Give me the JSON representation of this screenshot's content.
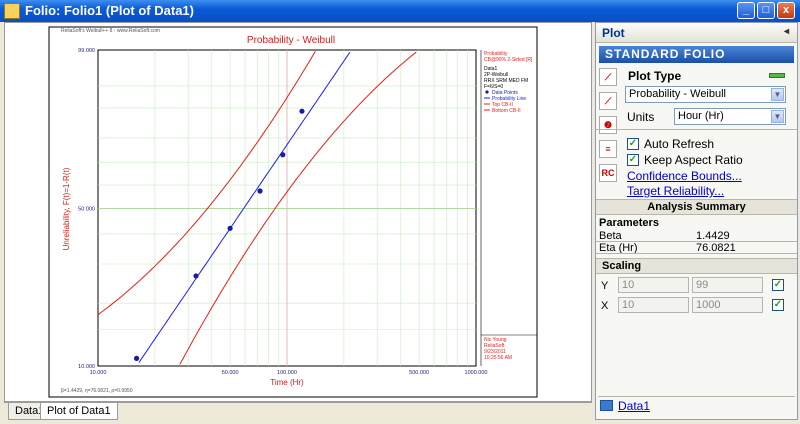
{
  "window": {
    "title": "Folio: Folio1 (Plot of Data1)",
    "buttons": [
      "_",
      "□",
      "x"
    ]
  },
  "chart_data": {
    "type": "scatter",
    "title": "Probability - Weibull",
    "xlabel": "Time (Hr)",
    "ylabel": "Unreliability, F(t)=1-R(t)",
    "x_scale": "log",
    "y_scale": "weibull",
    "xlim": [
      10,
      1000
    ],
    "ylim": [
      10,
      99
    ],
    "x_ticks": [
      "10.000",
      "50.000",
      "100.000",
      "500.000",
      "1000.000"
    ],
    "y_ticks": [
      "10.000",
      "50.000",
      "99.000"
    ],
    "header_text": "ReliaSoft's Weibull++ 8 - www.ReliaSoft.com",
    "footer_text": "β=1.4429, η=76.0821, ρ=0.9950",
    "legend_block1": [
      "Probability",
      "CB@90% 2-Sided [R]"
    ],
    "legend_block2": [
      "Data1",
      "2P-Weibull",
      "RRX SRM MED FM",
      "F=6/S=0"
    ],
    "legend_items": [
      {
        "name": "Data Points",
        "color": "#1a1aa8"
      },
      {
        "name": "Probability Line",
        "color": "#1a1aff"
      },
      {
        "name": "Top CB-II",
        "color": "#ee1c1c"
      },
      {
        "name": "Bottom CB-II",
        "color": "#ee1c1c"
      }
    ],
    "signature": [
      "Nic Young",
      "ReliaSoft",
      "9/23/2011",
      "10:25:56 AM"
    ],
    "points": [
      {
        "x": 16,
        "y": 10.9
      },
      {
        "x": 33,
        "y": 26.6
      },
      {
        "x": 50,
        "y": 42.1
      },
      {
        "x": 72,
        "y": 57.4
      },
      {
        "x": 95,
        "y": 73.2
      },
      {
        "x": 120,
        "y": 89.1
      }
    ],
    "colors": {
      "title": "#dd1b1b",
      "fit_line": "#1a1aff",
      "bounds": "#ee1c1c",
      "grid": "#c8ecc0",
      "axis_text": "#dd1b1b",
      "tick_text": "#1a1a8c"
    }
  },
  "tabs": [
    {
      "label": "Data1"
    },
    {
      "label": "Plot of Data1"
    }
  ],
  "panel": {
    "title": "Plot",
    "banner": "STANDARD FOLIO",
    "plot_type_title": "Plot Type",
    "plot_type_value": "Probability - Weibull",
    "units_label": "Units",
    "units_value": "Hour (Hr)",
    "auto_refresh": "Auto Refresh",
    "keep_aspect": "Keep Aspect Ratio",
    "confidence_link": "Confidence Bounds...",
    "target_link": "Target Reliability...",
    "analysis_title": "Analysis Summary",
    "parameters_label": "Parameters",
    "params": [
      {
        "name": "Beta",
        "value": "1.4429"
      },
      {
        "name": "Eta (Hr)",
        "value": "76.0821"
      }
    ],
    "scaling_title": "Scaling",
    "scaling": [
      {
        "axis": "Y",
        "min": "10",
        "max": "99"
      },
      {
        "axis": "X",
        "min": "10",
        "max": "1000"
      }
    ],
    "data_link": "Data1"
  }
}
